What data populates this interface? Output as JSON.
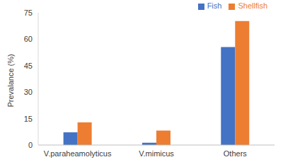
{
  "chart_data": {
    "type": "bar",
    "y_label": "Prevalance (%)",
    "categories": [
      "V.paraheamolyticus",
      "V.mimicus",
      "Others"
    ],
    "series": [
      {
        "name": "Fish",
        "color": "#4472c4",
        "values": [
          7.2,
          1.3,
          55.5
        ]
      },
      {
        "name": "Shellfish",
        "color": "#ed7d31",
        "values": [
          12.8,
          8.2,
          70.3
        ]
      }
    ],
    "ylim": [
      0,
      75
    ],
    "yticks": [
      0,
      15,
      30,
      45,
      60,
      75
    ],
    "grid": false,
    "legend": "top right"
  }
}
